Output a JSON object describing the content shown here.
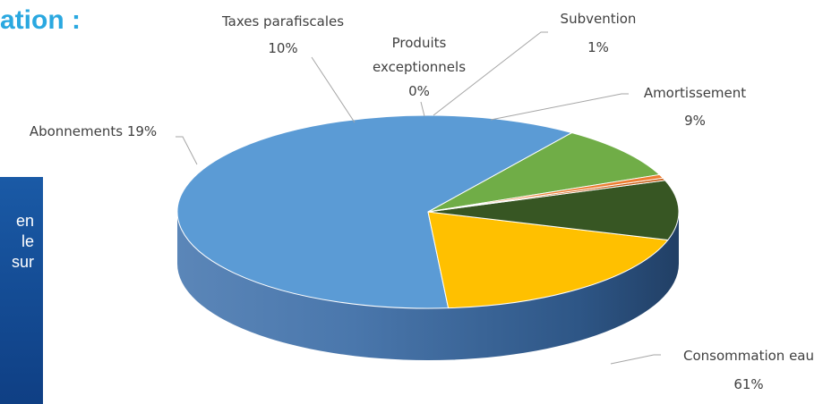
{
  "header": {
    "title_fragment": "ation :"
  },
  "side_panel": {
    "lines": [
      "en",
      "le",
      "sur"
    ]
  },
  "colors": {
    "heading": "#2aa8e0",
    "panel": "#15509a",
    "consommation": "#5b9bd5",
    "abonnements": "#ffc000",
    "taxes": "#375623",
    "produits": "#c55a11",
    "subvention": "#ed7d31",
    "amortissement": "#70ad47"
  },
  "chart_data": {
    "type": "pie",
    "style": "3d",
    "slices": [
      {
        "label": "Amortissement",
        "value": 9,
        "display": "9%",
        "color": "#70ad47"
      },
      {
        "label": "Consommation eau",
        "value": 61,
        "display": "61%",
        "color": "#5b9bd5"
      },
      {
        "label": "Abonnements",
        "value": 19,
        "display": "19%",
        "color": "#ffc000"
      },
      {
        "label": "Taxes parafiscales",
        "value": 10,
        "display": "10%",
        "color": "#375623"
      },
      {
        "label": "Produits exceptionnels",
        "value": 0.4,
        "display": "0%",
        "color": "#c55a11"
      },
      {
        "label": "Subvention",
        "value": 0.6,
        "display": "1%",
        "color": "#ed7d31"
      }
    ],
    "labels": {
      "amortissement": [
        "Amortissement",
        "9%"
      ],
      "consommation": [
        "Consommation eau",
        "61%"
      ],
      "abonnements": [
        "Abonnements 19%"
      ],
      "taxes": [
        "Taxes parafiscales",
        "10%"
      ],
      "produits": [
        "Produits",
        "exceptionnels",
        "0%"
      ],
      "subvention": [
        "Subvention",
        "1%"
      ]
    }
  }
}
